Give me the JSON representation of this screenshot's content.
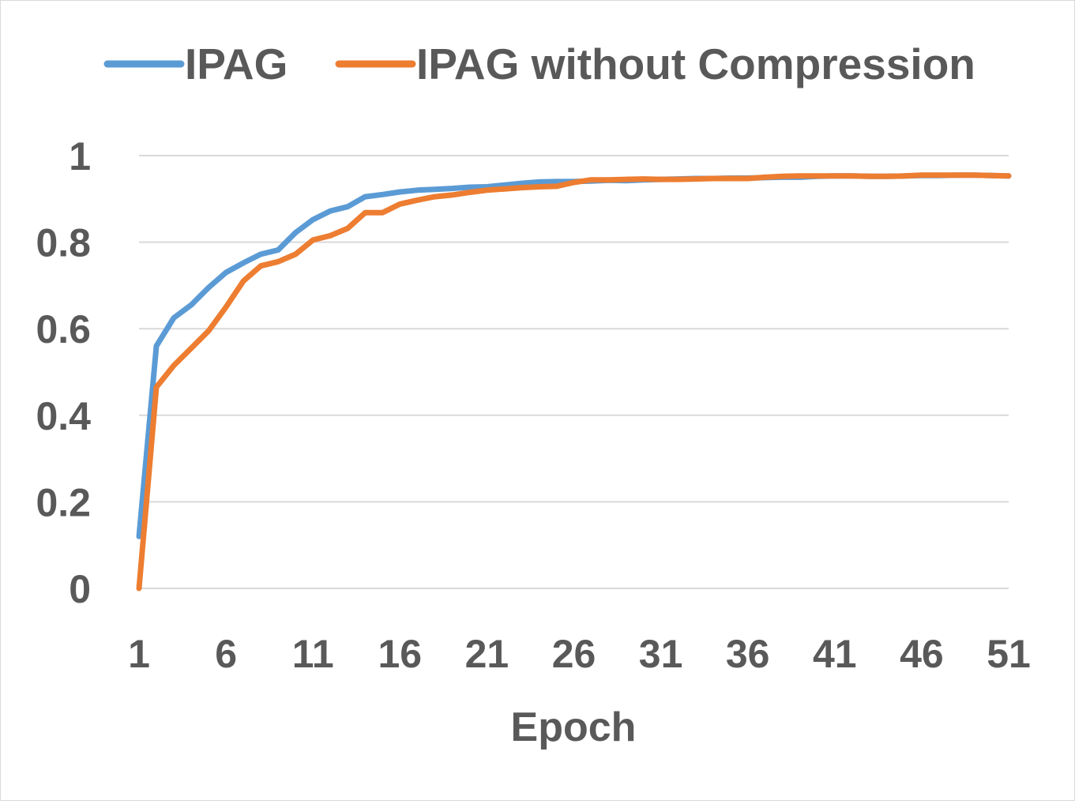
{
  "chart_data": {
    "type": "line",
    "title": "",
    "xlabel": "Epoch",
    "ylabel": "",
    "x": [
      1,
      2,
      3,
      4,
      5,
      6,
      7,
      8,
      9,
      10,
      11,
      12,
      13,
      14,
      15,
      16,
      17,
      18,
      19,
      20,
      21,
      22,
      23,
      24,
      25,
      26,
      27,
      28,
      29,
      30,
      31,
      32,
      33,
      34,
      35,
      36,
      37,
      38,
      39,
      40,
      41,
      42,
      43,
      44,
      45,
      46,
      47,
      48,
      49,
      50,
      51
    ],
    "x_ticks": [
      "1",
      "6",
      "11",
      "16",
      "21",
      "26",
      "31",
      "36",
      "41",
      "46",
      "51"
    ],
    "y_ticks": [
      "0",
      "0.2",
      "0.4",
      "0.6",
      "0.8",
      "1"
    ],
    "ylim": [
      0,
      1
    ],
    "grid": true,
    "legend_position": "top",
    "series": [
      {
        "name": "IPAG",
        "color": "#5b9bd5",
        "values": [
          0.12,
          0.56,
          0.625,
          0.655,
          0.695,
          0.73,
          0.752,
          0.772,
          0.782,
          0.822,
          0.852,
          0.872,
          0.882,
          0.905,
          0.91,
          0.916,
          0.92,
          0.922,
          0.924,
          0.927,
          0.928,
          0.932,
          0.936,
          0.939,
          0.94,
          0.94,
          0.941,
          0.943,
          0.942,
          0.944,
          0.945,
          0.946,
          0.947,
          0.947,
          0.948,
          0.948,
          0.949,
          0.95,
          0.95,
          0.952,
          0.953,
          0.953,
          0.952,
          0.952,
          0.953,
          0.954,
          0.954,
          0.955,
          0.955,
          0.954,
          0.953
        ]
      },
      {
        "name": "IPAG without Compression",
        "color": "#ed7d31",
        "values": [
          0.0,
          0.465,
          0.515,
          0.555,
          0.595,
          0.65,
          0.71,
          0.745,
          0.755,
          0.772,
          0.805,
          0.815,
          0.832,
          0.868,
          0.868,
          0.888,
          0.897,
          0.905,
          0.909,
          0.915,
          0.92,
          0.923,
          0.926,
          0.928,
          0.929,
          0.938,
          0.944,
          0.944,
          0.945,
          0.946,
          0.945,
          0.945,
          0.946,
          0.947,
          0.947,
          0.947,
          0.95,
          0.952,
          0.953,
          0.953,
          0.953,
          0.953,
          0.952,
          0.952,
          0.953,
          0.955,
          0.955,
          0.955,
          0.955,
          0.954,
          0.953
        ]
      }
    ]
  }
}
